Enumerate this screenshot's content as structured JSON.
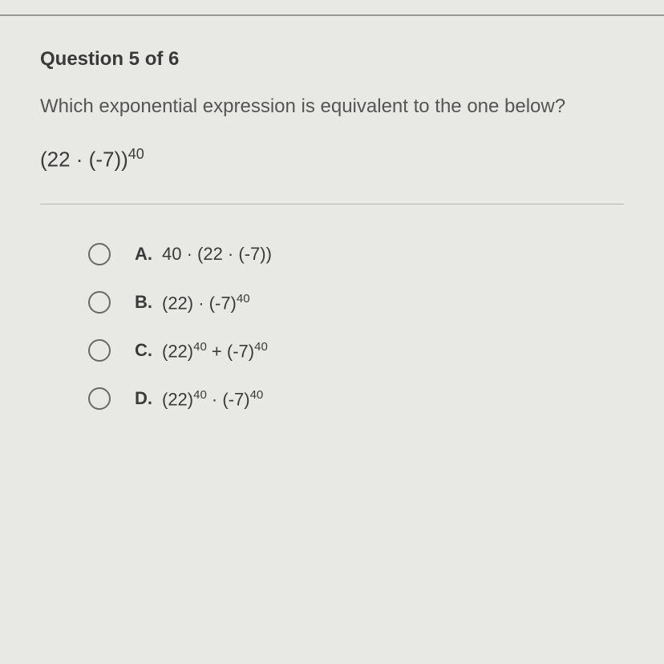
{
  "question": {
    "header": "Question 5 of 6",
    "prompt": "Which exponential expression is equivalent to the one below?",
    "expression_base": "(22 · (-7))",
    "expression_exp": "40"
  },
  "options": [
    {
      "letter": "A.",
      "html": "40 · (22 · (-7))"
    },
    {
      "letter": "B.",
      "html": "(22) · (-7)<sup>40</sup>"
    },
    {
      "letter": "C.",
      "html": "(22)<sup>40</sup> + (-7)<sup>40</sup>"
    },
    {
      "letter": "D.",
      "html": "(22)<sup>40</sup> · (-7)<sup>40</sup>"
    }
  ],
  "styles": {
    "background_color": "#e8e9e5",
    "text_color": "#3a3a3a",
    "prompt_color": "#555",
    "radio_border_color": "#6a6a6a",
    "divider_color": "#b5b5b0",
    "header_fontsize": 24,
    "prompt_fontsize": 24,
    "expression_fontsize": 26,
    "option_fontsize": 22
  }
}
